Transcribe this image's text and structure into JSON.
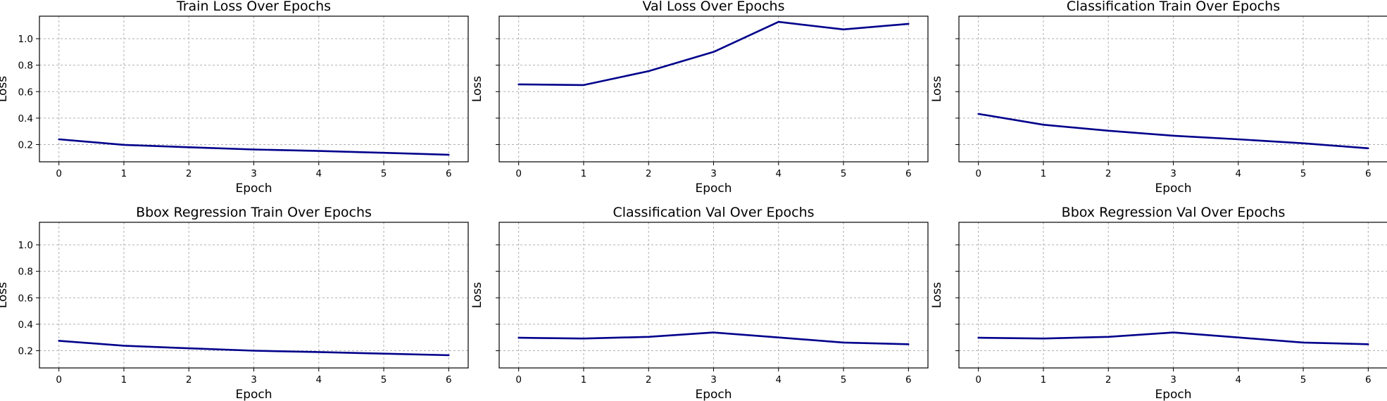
{
  "figure": {
    "line_color": "#00008b"
  },
  "chart_data": [
    {
      "type": "line",
      "title": "Train Loss Over Epochs",
      "xlabel": "Epoch",
      "ylabel": "Loss",
      "x": [
        0,
        1,
        2,
        3,
        4,
        5,
        6
      ],
      "y": [
        0.24,
        0.198,
        0.18,
        0.163,
        0.152,
        0.138,
        0.123
      ],
      "xticks": [
        0,
        1,
        2,
        3,
        4,
        5,
        6
      ],
      "yticks": [
        0.2,
        0.4,
        0.6,
        0.8,
        1.0
      ],
      "ytick_labels_shown": true,
      "xlim": [
        -0.3,
        6.3
      ],
      "ylim": [
        0.07,
        1.17
      ],
      "grid": true
    },
    {
      "type": "line",
      "title": "Val Loss Over Epochs",
      "xlabel": "Epoch",
      "ylabel": "Loss",
      "x": [
        0,
        1,
        2,
        3,
        4,
        5,
        6
      ],
      "y": [
        0.655,
        0.65,
        0.755,
        0.9,
        1.127,
        1.07,
        1.112
      ],
      "xticks": [
        0,
        1,
        2,
        3,
        4,
        5,
        6
      ],
      "yticks": [
        0.2,
        0.4,
        0.6,
        0.8,
        1.0
      ],
      "ytick_labels_shown": false,
      "xlim": [
        -0.3,
        6.3
      ],
      "ylim": [
        0.07,
        1.17
      ],
      "grid": true
    },
    {
      "type": "line",
      "title": "Classification Train Over Epochs",
      "xlabel": "Epoch",
      "ylabel": "Loss",
      "x": [
        0,
        1,
        2,
        3,
        4,
        5,
        6
      ],
      "y": [
        0.432,
        0.35,
        0.305,
        0.267,
        0.24,
        0.21,
        0.172
      ],
      "xticks": [
        0,
        1,
        2,
        3,
        4,
        5,
        6
      ],
      "yticks": [
        0.2,
        0.4,
        0.6,
        0.8,
        1.0
      ],
      "ytick_labels_shown": false,
      "xlim": [
        -0.3,
        6.3
      ],
      "ylim": [
        0.07,
        1.17
      ],
      "grid": true
    },
    {
      "type": "line",
      "title": "Bbox Regression Train Over Epochs",
      "xlabel": "Epoch",
      "ylabel": "Loss",
      "x": [
        0,
        1,
        2,
        3,
        4,
        5,
        6
      ],
      "y": [
        0.275,
        0.238,
        0.218,
        0.2,
        0.19,
        0.178,
        0.166
      ],
      "xticks": [
        0,
        1,
        2,
        3,
        4,
        5,
        6
      ],
      "yticks": [
        0.2,
        0.4,
        0.6,
        0.8,
        1.0
      ],
      "ytick_labels_shown": true,
      "xlim": [
        -0.3,
        6.3
      ],
      "ylim": [
        0.07,
        1.17
      ],
      "grid": true
    },
    {
      "type": "line",
      "title": "Classification Val Over Epochs",
      "xlabel": "Epoch",
      "ylabel": "Loss",
      "x": [
        0,
        1,
        2,
        3,
        4,
        5,
        6
      ],
      "y": [
        0.298,
        0.292,
        0.305,
        0.338,
        0.3,
        0.262,
        0.249
      ],
      "xticks": [
        0,
        1,
        2,
        3,
        4,
        5,
        6
      ],
      "yticks": [
        0.2,
        0.4,
        0.6,
        0.8,
        1.0
      ],
      "ytick_labels_shown": false,
      "xlim": [
        -0.3,
        6.3
      ],
      "ylim": [
        0.07,
        1.17
      ],
      "grid": true
    },
    {
      "type": "line",
      "title": "Bbox Regression Val Over Epochs",
      "xlabel": "Epoch",
      "ylabel": "Loss",
      "x": [
        0,
        1,
        2,
        3,
        4,
        5,
        6
      ],
      "y": [
        0.298,
        0.292,
        0.305,
        0.338,
        0.3,
        0.262,
        0.249
      ],
      "xticks": [
        0,
        1,
        2,
        3,
        4,
        5,
        6
      ],
      "yticks": [
        0.2,
        0.4,
        0.6,
        0.8,
        1.0
      ],
      "ytick_labels_shown": false,
      "xlim": [
        -0.3,
        6.3
      ],
      "ylim": [
        0.07,
        1.17
      ],
      "grid": true
    }
  ]
}
